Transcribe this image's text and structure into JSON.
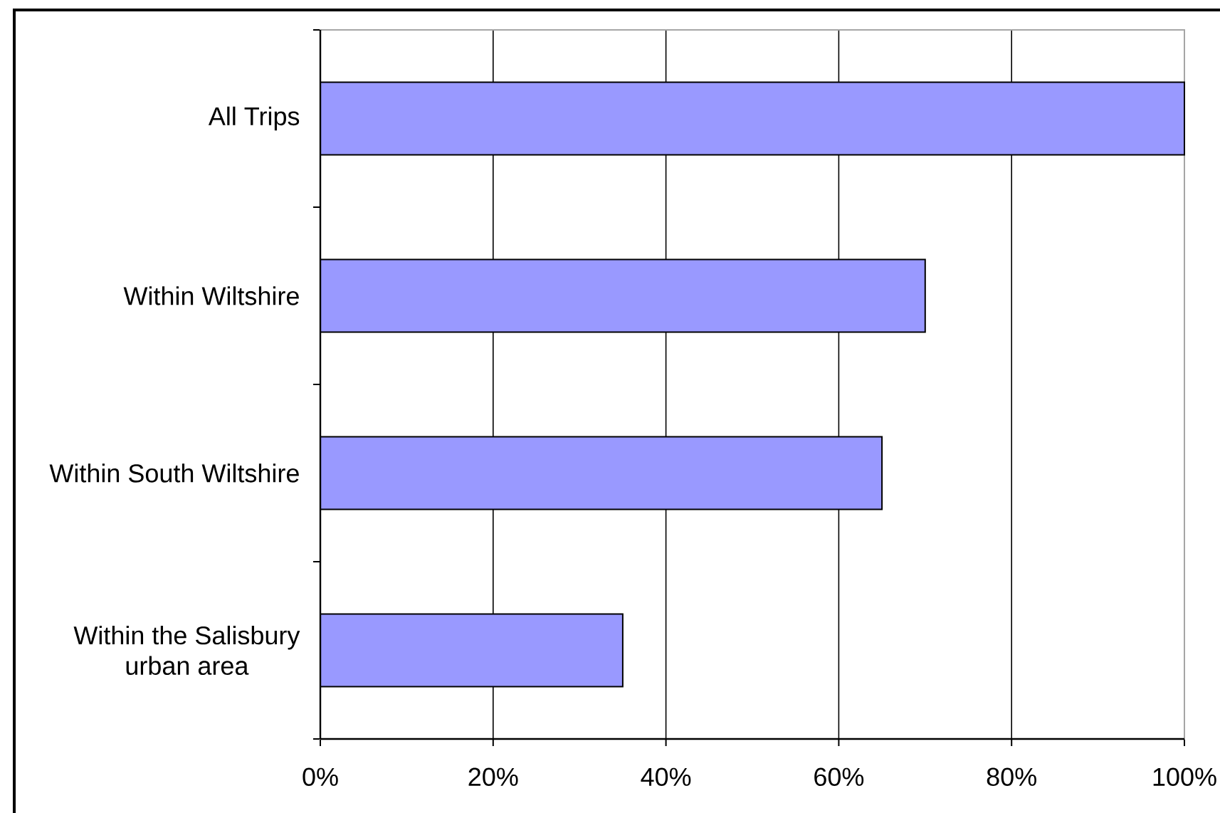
{
  "chart_data": {
    "type": "bar",
    "orientation": "horizontal",
    "categories": [
      "All Trips",
      "Within Wiltshire",
      "Within South Wiltshire",
      "Within the Salisbury urban area"
    ],
    "values": [
      100,
      70,
      65,
      35
    ],
    "color": "#9999ff",
    "xlim": [
      0,
      100
    ],
    "xticks": [
      {
        "value": 0,
        "label": "0%"
      },
      {
        "value": 20,
        "label": "20%"
      },
      {
        "value": 40,
        "label": "40%"
      },
      {
        "value": 60,
        "label": "60%"
      },
      {
        "value": 80,
        "label": "80%"
      },
      {
        "value": 100,
        "label": "100%"
      }
    ],
    "grid": "x"
  }
}
